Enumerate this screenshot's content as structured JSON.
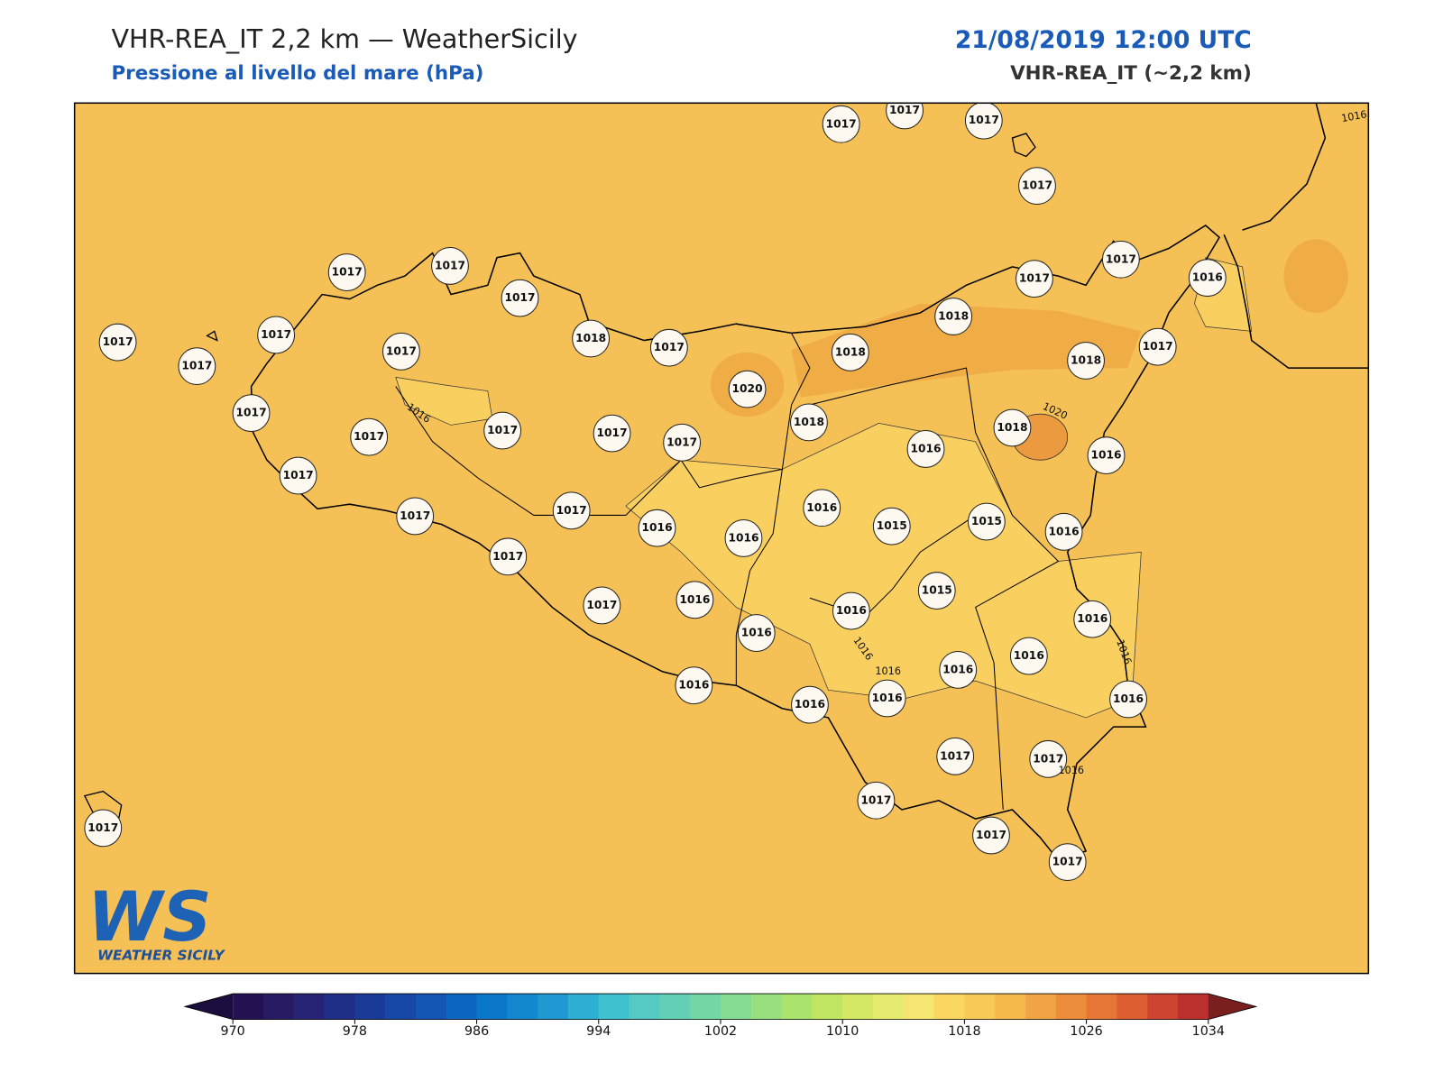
{
  "header": {
    "title": "VHR-REA_IT 2,2 km — WeatherSicily",
    "subtitle": "Pressione al livello del mare (hPa)",
    "datetime": "21/08/2019 12:00 UTC",
    "model": "VHR-REA_IT (~2,2 km)"
  },
  "map": {
    "stations": [
      1017,
      1017,
      1017,
      1017,
      1017,
      1017,
      1017,
      1017,
      1017,
      1017,
      1017,
      1018,
      1017,
      1017,
      1017,
      1016,
      1018,
      1018,
      1018,
      1017,
      1020,
      1017,
      1017,
      1017,
      1017,
      1017,
      1018,
      1016,
      1018,
      1016,
      1017,
      1017,
      1017,
      1016,
      1016,
      1016,
      1015,
      1015,
      1016,
      1017,
      1017,
      1016,
      1016,
      1016,
      1015,
      1016,
      1016,
      1016,
      1016,
      1016,
      1016,
      1016,
      1017,
      1017,
      1017,
      1017,
      1017,
      1017
    ],
    "contour_labels": [
      "1016",
      "1016",
      "1016",
      "1016",
      "1016",
      "1016",
      "1020"
    ],
    "colors": {
      "sea": "#f5c157",
      "land_light": "#f9cf5f",
      "land_dark": "#f1ad45"
    }
  },
  "logo": {
    "letters": "WS",
    "name": "WEATHER SICILY"
  },
  "colorbar": {
    "lim": [
      970,
      1034
    ],
    "ticks": [
      970,
      978,
      986,
      994,
      1002,
      1010,
      1018,
      1026,
      1034
    ],
    "colors": [
      "#231151",
      "#281a63",
      "#262474",
      "#1f2e86",
      "#1a3a98",
      "#1748a8",
      "#1356b4",
      "#0d66c0",
      "#0a77c8",
      "#1388cf",
      "#2099d2",
      "#2eb0d4",
      "#40c1d0",
      "#55c9c4",
      "#63d0b6",
      "#72d7a5",
      "#85dc92",
      "#98e07f",
      "#abe46d",
      "#c0e663",
      "#d4e866",
      "#e6eb70",
      "#f6e570",
      "#fad761",
      "#f8c957",
      "#f4b84d",
      "#f0a444",
      "#ec8d3c",
      "#e67635",
      "#dc5e31",
      "#cd4530",
      "#bc302e"
    ],
    "extend_colors": [
      "#1b0d3d",
      "#7a1e1e"
    ]
  }
}
